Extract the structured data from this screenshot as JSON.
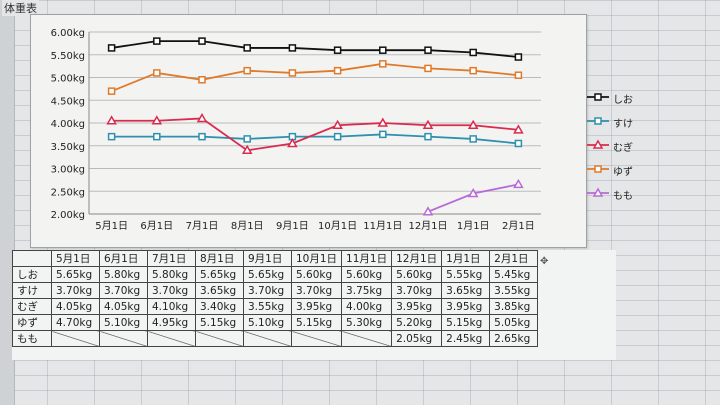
{
  "sheet": {
    "title": "体重表"
  },
  "chart_data": {
    "type": "line",
    "categories": [
      "5月1日",
      "6月1日",
      "7月1日",
      "8月1日",
      "9月1日",
      "10月1日",
      "11月1日",
      "12月1日",
      "1月1日",
      "2月1日"
    ],
    "y_tick_labels": [
      "2.00kg",
      "2.50kg",
      "3.00kg",
      "3.50kg",
      "4.00kg",
      "4.50kg",
      "5.00kg",
      "5.50kg",
      "6.00kg"
    ],
    "ylim": [
      2.0,
      6.0
    ],
    "legend_position": "right",
    "series": [
      {
        "name": "しお",
        "color": "#111111",
        "marker": "square",
        "values": [
          5.65,
          5.8,
          5.8,
          5.65,
          5.65,
          5.6,
          5.6,
          5.6,
          5.55,
          5.45
        ]
      },
      {
        "name": "すけ",
        "color": "#2f8fae",
        "marker": "square",
        "values": [
          3.7,
          3.7,
          3.7,
          3.65,
          3.7,
          3.7,
          3.75,
          3.7,
          3.65,
          3.55
        ]
      },
      {
        "name": "むぎ",
        "color": "#d92b4e",
        "marker": "triangle",
        "values": [
          4.05,
          4.05,
          4.1,
          3.4,
          3.55,
          3.95,
          4.0,
          3.95,
          3.95,
          3.85
        ]
      },
      {
        "name": "ゆず",
        "color": "#e07a2b",
        "marker": "square",
        "values": [
          4.7,
          5.1,
          4.95,
          5.15,
          5.1,
          5.15,
          5.3,
          5.2,
          5.15,
          5.05
        ]
      },
      {
        "name": "もも",
        "color": "#b86ad6",
        "marker": "triangle",
        "values": [
          null,
          null,
          null,
          null,
          null,
          null,
          null,
          2.05,
          2.45,
          2.65
        ]
      }
    ]
  },
  "table": {
    "headers": [
      "5月1日",
      "6月1日",
      "7月1日",
      "8月1日",
      "9月1日",
      "10月1日",
      "11月1日",
      "12月1日",
      "1月1日",
      "2月1日"
    ],
    "rows": [
      {
        "label": "しお",
        "cells": [
          "5.65kg",
          "5.80kg",
          "5.80kg",
          "5.65kg",
          "5.65kg",
          "5.60kg",
          "5.60kg",
          "5.60kg",
          "5.55kg",
          "5.45kg"
        ]
      },
      {
        "label": "すけ",
        "cells": [
          "3.70kg",
          "3.70kg",
          "3.70kg",
          "3.65kg",
          "3.70kg",
          "3.70kg",
          "3.75kg",
          "3.70kg",
          "3.65kg",
          "3.55kg"
        ]
      },
      {
        "label": "むぎ",
        "cells": [
          "4.05kg",
          "4.05kg",
          "4.10kg",
          "3.40kg",
          "3.55kg",
          "3.95kg",
          "4.00kg",
          "3.95kg",
          "3.95kg",
          "3.85kg"
        ]
      },
      {
        "label": "ゆず",
        "cells": [
          "4.70kg",
          "5.10kg",
          "4.95kg",
          "5.15kg",
          "5.10kg",
          "5.15kg",
          "5.30kg",
          "5.20kg",
          "5.15kg",
          "5.05kg"
        ]
      },
      {
        "label": "もも",
        "cells": [
          "",
          "",
          "",
          "",
          "",
          "",
          "",
          "2.05kg",
          "2.45kg",
          "2.65kg"
        ]
      }
    ]
  }
}
